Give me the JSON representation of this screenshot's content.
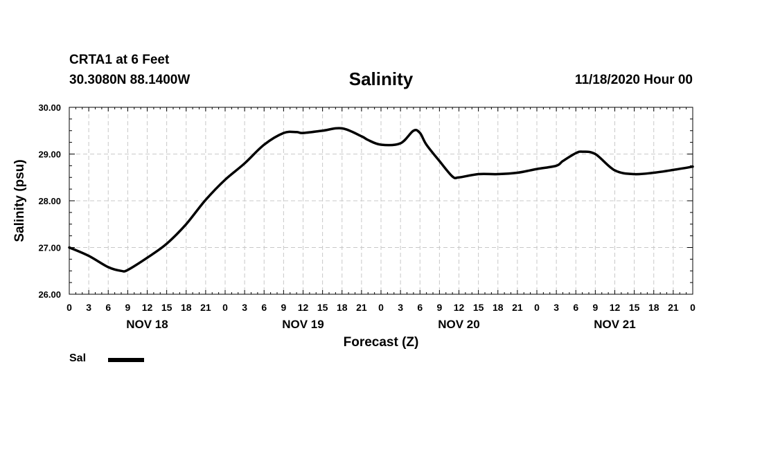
{
  "header": {
    "station": "CRTA1 at 6 Feet",
    "coords": "30.3080N 88.1400W",
    "title": "Salinity",
    "run": "11/18/2020 Hour 00"
  },
  "chart_data": {
    "type": "line",
    "title": "Salinity",
    "xlabel": "Forecast (Z)",
    "ylabel": "Salinity (psu)",
    "ylim": [
      26.0,
      30.0
    ],
    "yticks": [
      "26.00",
      "27.00",
      "28.00",
      "29.00",
      "30.00"
    ],
    "xlim": [
      0,
      96
    ],
    "xtick_labels": [
      "0",
      "3",
      "6",
      "9",
      "12",
      "15",
      "18",
      "21",
      "0",
      "3",
      "6",
      "9",
      "12",
      "15",
      "18",
      "21",
      "0",
      "3",
      "6",
      "9",
      "12",
      "15",
      "18",
      "21",
      "0",
      "3",
      "6",
      "9",
      "12",
      "15",
      "18",
      "21",
      "0"
    ],
    "day_labels": [
      "NOV 18",
      "NOV 19",
      "NOV 20",
      "NOV 21"
    ],
    "grid": true,
    "legend_position": "bottom-left",
    "series": [
      {
        "name": "Sal",
        "color": "#000000",
        "x_hours": [
          0,
          3,
          6,
          8,
          9,
          12,
          15,
          18,
          21,
          24,
          27,
          30,
          33,
          35,
          36,
          39,
          42,
          45,
          46,
          48,
          51,
          53,
          54,
          55,
          57,
          59,
          60,
          63,
          66,
          69,
          72,
          75,
          76,
          78,
          79,
          81,
          84,
          87,
          90,
          93,
          96
        ],
        "values": [
          27.0,
          26.82,
          26.58,
          26.5,
          26.52,
          26.78,
          27.08,
          27.5,
          28.02,
          28.45,
          28.8,
          29.2,
          29.45,
          29.47,
          29.45,
          29.5,
          29.55,
          29.38,
          29.3,
          29.2,
          29.23,
          29.5,
          29.45,
          29.2,
          28.85,
          28.52,
          28.5,
          28.57,
          28.57,
          28.6,
          28.68,
          28.75,
          28.85,
          29.02,
          29.05,
          29.0,
          28.65,
          28.57,
          28.6,
          28.66,
          28.73
        ]
      }
    ]
  },
  "legend": {
    "label": "Sal"
  }
}
